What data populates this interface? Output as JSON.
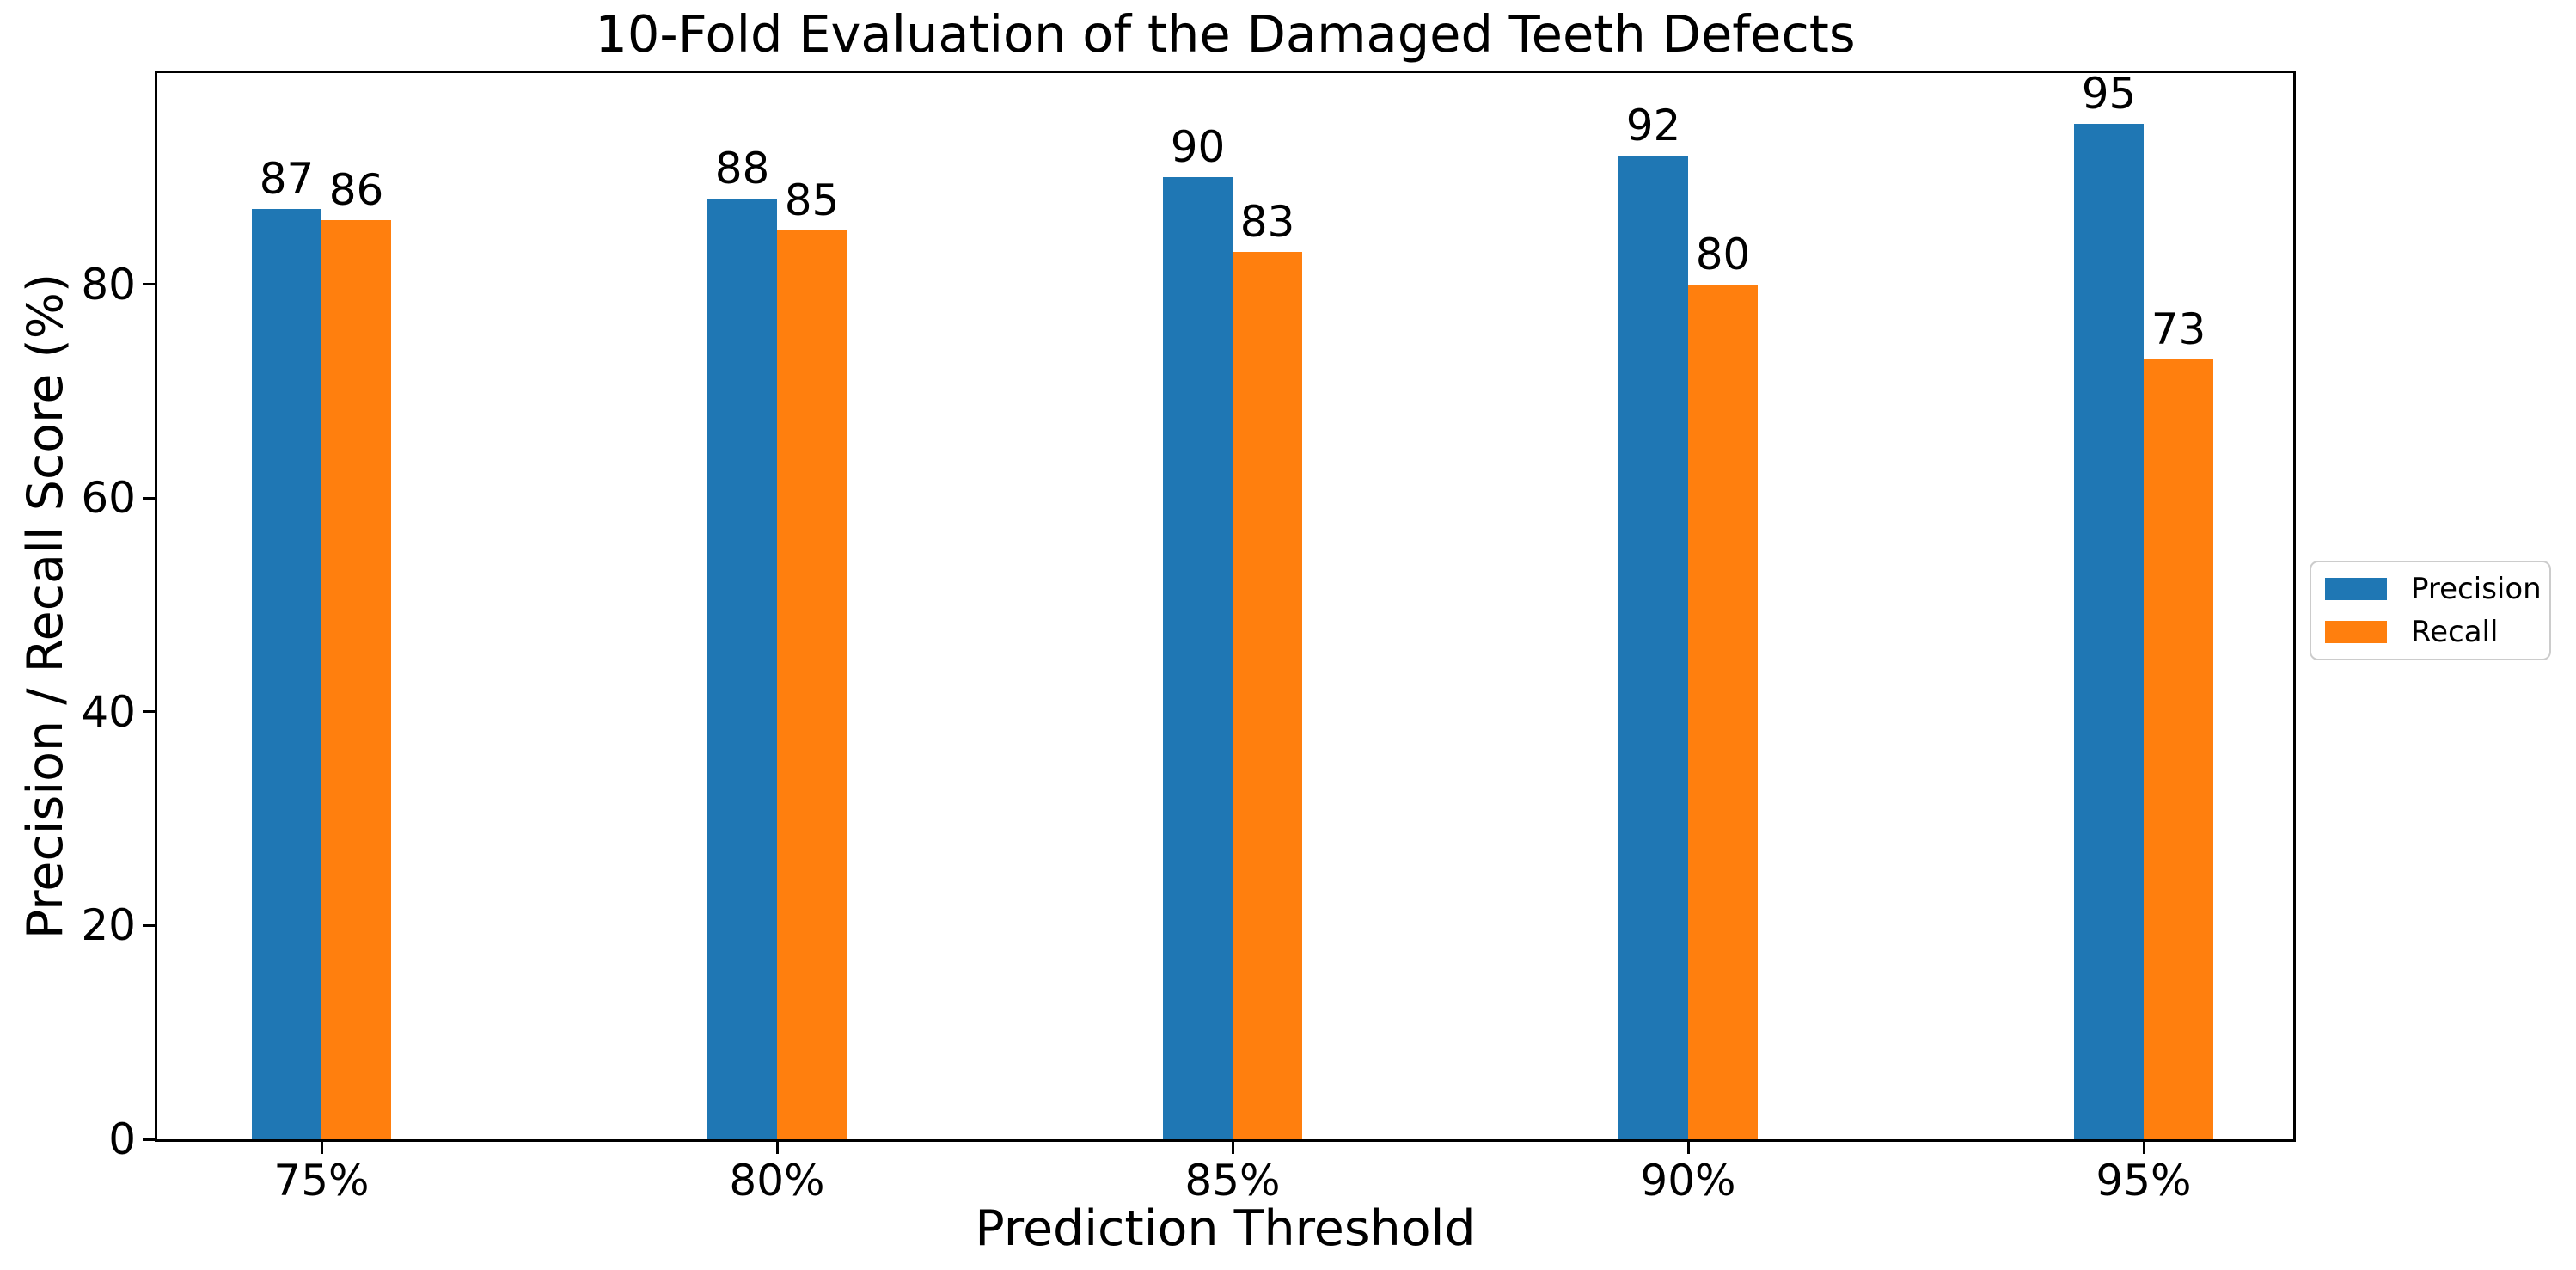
{
  "chart_data": {
    "type": "bar",
    "title": "10-Fold Evaluation of the Damaged Teeth Defects",
    "xlabel": "Prediction Threshold",
    "ylabel": "Precision / Recall Score (%)",
    "categories": [
      "75%",
      "80%",
      "85%",
      "90%",
      "95%"
    ],
    "series": [
      {
        "name": "Precision",
        "color": "#1f77b4",
        "values": [
          87,
          88,
          90,
          92,
          95
        ]
      },
      {
        "name": "Recall",
        "color": "#ff7f0e",
        "values": [
          86,
          85,
          83,
          80,
          73
        ]
      }
    ],
    "bar_value_labels": {
      "Precision": [
        87,
        88,
        90,
        92,
        95
      ],
      "Recall": [
        86,
        85,
        83,
        80,
        73
      ]
    },
    "yticks": [
      0,
      20,
      40,
      60,
      80
    ],
    "ylim": [
      0,
      99.75
    ],
    "grid": false,
    "legend": {
      "entries": [
        "Precision",
        "Recall"
      ],
      "position": "center-right-outside"
    }
  }
}
